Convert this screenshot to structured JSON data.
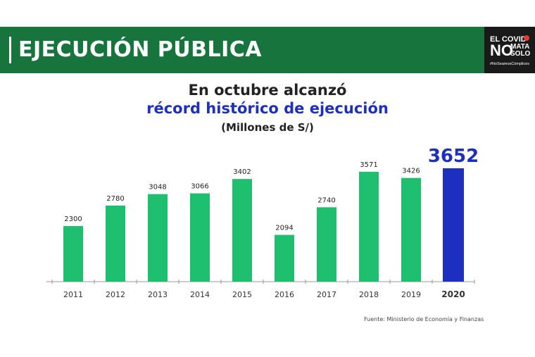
{
  "banner": {
    "title": "EJECUCIÓN PÚBLICA"
  },
  "logo": {
    "line1": "EL COVID",
    "big": "NO",
    "line2": "MATA",
    "line3": "SOLO",
    "hashtag": "#NoSeamosCómplices"
  },
  "headline": {
    "line1": "En octubre alcanzó",
    "line2": "récord histórico de ejecución",
    "units": "(Millones de S/)"
  },
  "source": "Fuente: Ministerio de Economía y Finanzas",
  "colors": {
    "banner": "#17743d",
    "bar": "#1fbf70",
    "highlight_bar": "#1d2fc0",
    "axis": "#9a9a9a"
  },
  "chart_data": {
    "type": "bar",
    "categories": [
      "2011",
      "2012",
      "2013",
      "2014",
      "2015",
      "2016",
      "2017",
      "2018",
      "2019",
      "2020"
    ],
    "values": [
      2300,
      2780,
      3048,
      3066,
      3402,
      2094,
      2740,
      3571,
      3426,
      3652
    ],
    "highlight_index": 9,
    "title": "En octubre alcanzó récord histórico de ejecución",
    "ylabel": "(Millones de S/)",
    "ylim": [
      1000,
      3652
    ],
    "grid": false,
    "legend": "none"
  }
}
